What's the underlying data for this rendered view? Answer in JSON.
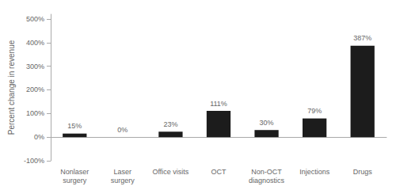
{
  "chart_data": {
    "type": "bar",
    "categories": [
      "Nonlaser\nsurgery",
      "Laser\nsurgery",
      "Office visits",
      "OCT",
      "Non-OCT\ndiagnostics",
      "Injections",
      "Drugs"
    ],
    "values": [
      15,
      0,
      23,
      111,
      30,
      79,
      387
    ],
    "value_labels": [
      "15%",
      "0%",
      "23%",
      "111%",
      "30%",
      "79%",
      "387%"
    ],
    "data_labels": true,
    "color": "#1c1c1c",
    "ylabel": "Percent change in revenue",
    "ylim": [
      -100,
      520
    ],
    "yticks": [
      {
        "value": -100,
        "label": "-100%"
      },
      {
        "value": 0,
        "label": "0%"
      },
      {
        "value": 100,
        "label": "100%"
      },
      {
        "value": 200,
        "label": "200%"
      },
      {
        "value": 300,
        "label": "300%"
      },
      {
        "value": 400,
        "label": "400%"
      },
      {
        "value": 500,
        "label": "500%"
      }
    ],
    "grid": false
  }
}
